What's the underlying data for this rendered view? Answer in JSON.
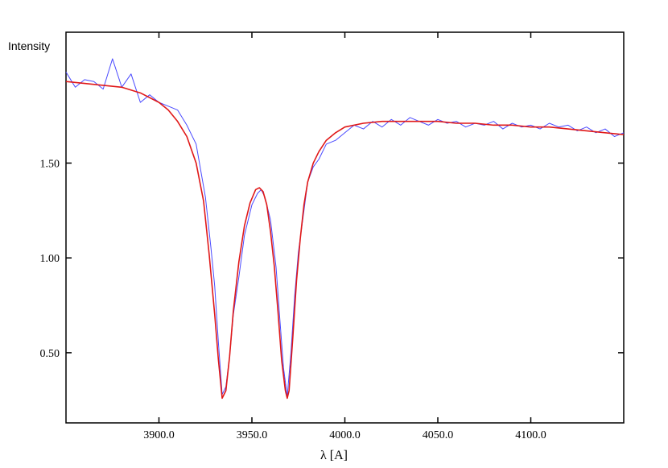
{
  "chart_data": {
    "type": "line",
    "title": "",
    "xlabel": "λ [A]",
    "ylabel": "Intensity",
    "xlim": [
      3850,
      4150
    ],
    "ylim": [
      0.13,
      2.19
    ],
    "xticks": [
      3900,
      3950,
      4000,
      4050,
      4100
    ],
    "xtick_labels": [
      "3900.0",
      "3950.0",
      "4000.0",
      "4050.0",
      "4100.0"
    ],
    "yticks": [
      0.5,
      1.0,
      1.5
    ],
    "ytick_labels": [
      "0.50",
      "1.00",
      "1.50"
    ],
    "grid": false,
    "series": [
      {
        "kind": "observed",
        "color": "#4a4aff",
        "x": [
          3850,
          3855,
          3860,
          3865,
          3870,
          3875,
          3880,
          3885,
          3890,
          3895,
          3900,
          3905,
          3910,
          3915,
          3920,
          3925,
          3928,
          3930,
          3932,
          3934,
          3936,
          3938,
          3940,
          3943,
          3946,
          3950,
          3953,
          3955,
          3957,
          3960,
          3963,
          3965,
          3967,
          3969,
          3971,
          3973,
          3975,
          3978,
          3980,
          3983,
          3986,
          3990,
          3995,
          4000,
          4005,
          4010,
          4015,
          4020,
          4025,
          4030,
          4035,
          4040,
          4045,
          4050,
          4055,
          4060,
          4065,
          4070,
          4075,
          4080,
          4085,
          4090,
          4095,
          4100,
          4105,
          4110,
          4115,
          4120,
          4125,
          4130,
          4135,
          4140,
          4145,
          4150
        ],
        "y": [
          1.98,
          1.9,
          1.94,
          1.93,
          1.89,
          2.05,
          1.9,
          1.97,
          1.82,
          1.86,
          1.82,
          1.8,
          1.78,
          1.7,
          1.6,
          1.32,
          1.05,
          0.85,
          0.55,
          0.28,
          0.32,
          0.48,
          0.7,
          0.9,
          1.12,
          1.28,
          1.34,
          1.36,
          1.32,
          1.2,
          0.95,
          0.68,
          0.42,
          0.27,
          0.5,
          0.8,
          1.03,
          1.25,
          1.4,
          1.48,
          1.52,
          1.6,
          1.62,
          1.66,
          1.7,
          1.68,
          1.72,
          1.69,
          1.73,
          1.7,
          1.74,
          1.72,
          1.7,
          1.73,
          1.71,
          1.72,
          1.69,
          1.71,
          1.7,
          1.72,
          1.68,
          1.71,
          1.69,
          1.7,
          1.68,
          1.71,
          1.69,
          1.7,
          1.67,
          1.69,
          1.66,
          1.68,
          1.64,
          1.66
        ]
      },
      {
        "kind": "fit",
        "color": "#e01818",
        "x": [
          3850,
          3860,
          3870,
          3880,
          3890,
          3900,
          3905,
          3910,
          3915,
          3920,
          3924,
          3927,
          3930,
          3932,
          3934,
          3936,
          3938,
          3940,
          3943,
          3946,
          3949,
          3952,
          3954,
          3956,
          3958,
          3960,
          3962,
          3964,
          3966,
          3968,
          3969,
          3970,
          3972,
          3974,
          3976,
          3978,
          3980,
          3983,
          3986,
          3990,
          3995,
          4000,
          4010,
          4020,
          4030,
          4040,
          4050,
          4060,
          4070,
          4080,
          4090,
          4100,
          4110,
          4120,
          4130,
          4140,
          4150
        ],
        "y": [
          1.93,
          1.92,
          1.91,
          1.9,
          1.87,
          1.82,
          1.78,
          1.72,
          1.64,
          1.5,
          1.3,
          1.02,
          0.7,
          0.46,
          0.26,
          0.3,
          0.48,
          0.72,
          0.98,
          1.17,
          1.29,
          1.36,
          1.37,
          1.35,
          1.28,
          1.14,
          0.96,
          0.72,
          0.46,
          0.3,
          0.26,
          0.3,
          0.58,
          0.88,
          1.1,
          1.28,
          1.4,
          1.5,
          1.56,
          1.62,
          1.66,
          1.69,
          1.71,
          1.72,
          1.72,
          1.72,
          1.72,
          1.71,
          1.71,
          1.7,
          1.7,
          1.69,
          1.69,
          1.68,
          1.67,
          1.66,
          1.65
        ]
      }
    ]
  }
}
